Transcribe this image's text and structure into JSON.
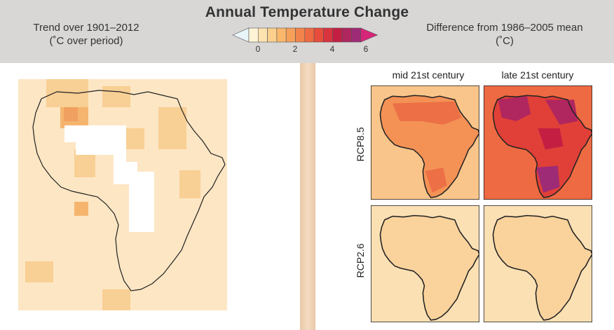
{
  "title": "Annual Temperature Change",
  "left_header": {
    "line1": "Trend over 1901–2012",
    "line2": "(˚C over period)"
  },
  "right_header": {
    "line1": "Difference from 1986–2005 mean",
    "line2": "(˚C)"
  },
  "colorbar": {
    "ticks": [
      "0",
      "2",
      "4",
      "6"
    ],
    "colors": [
      "#e8f4f8",
      "#fff3d6",
      "#fde3b0",
      "#fbd08d",
      "#f9b86c",
      "#f6a05a",
      "#f2844b",
      "#ee6a42",
      "#e84c3b",
      "#d93340",
      "#c41f43",
      "#b0265f",
      "#9e2b76",
      "#d6267a"
    ]
  },
  "panels": {
    "col_titles": [
      "mid 21st century",
      "late 21st century"
    ],
    "row_labels": [
      "RCP8.5",
      "RCP2.6"
    ]
  },
  "colors": {
    "header_bg": "#d8d7d6",
    "map_light": "#f9d8a6",
    "map_mid": "#f6c48a",
    "no_data": "#ffffff"
  }
}
